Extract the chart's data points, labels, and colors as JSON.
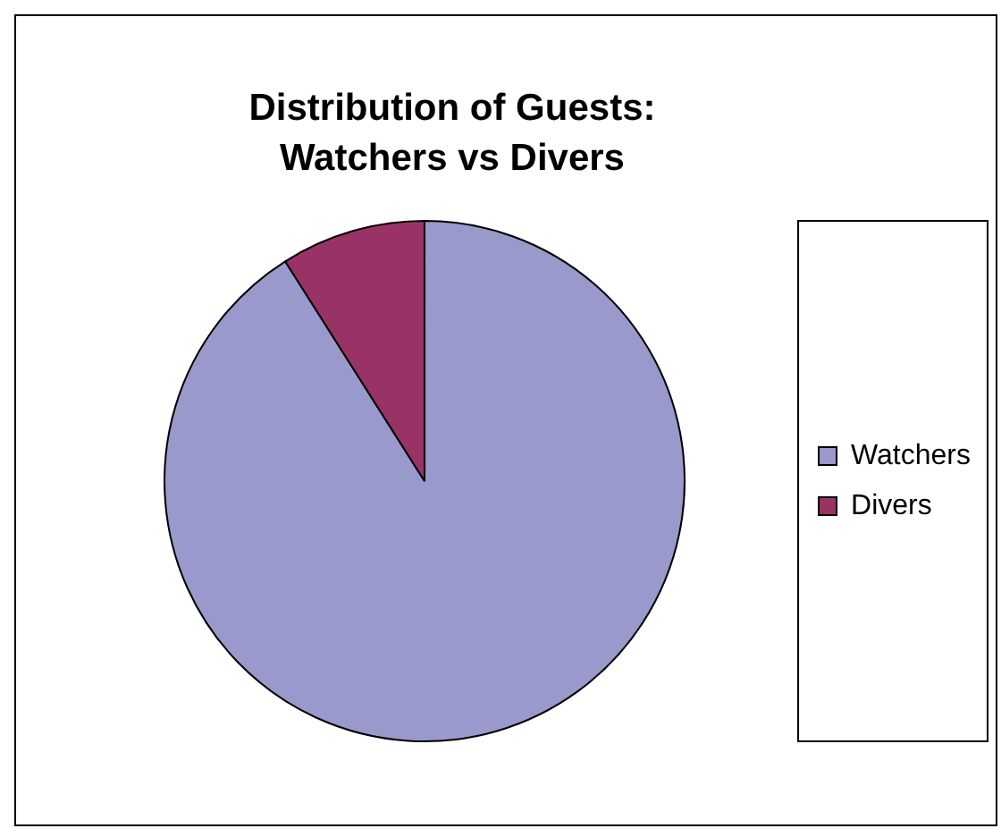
{
  "chart_data": {
    "type": "pie",
    "title": "Distribution of Guests: Watchers vs Divers",
    "categories": [
      "Watchers",
      "Divers"
    ],
    "values": [
      91,
      9
    ],
    "colors": [
      "#9999cc",
      "#993366"
    ],
    "legend": "right"
  }
}
